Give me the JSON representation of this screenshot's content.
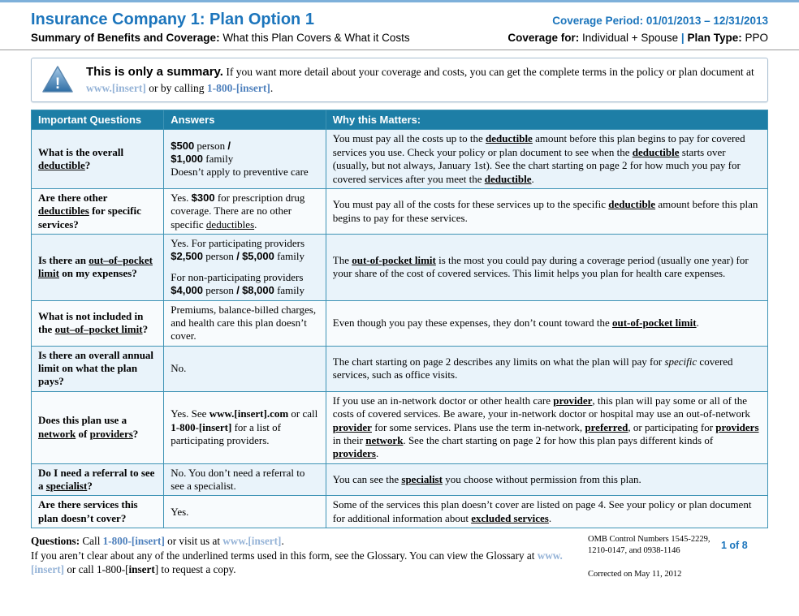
{
  "colors": {
    "title_blue": "#1C75BC",
    "table_header_teal": "#1D7EA6",
    "grid_line": "#3E93B5",
    "row_tint": "#E9F3FA",
    "phone_link": "#4F81BD",
    "web_link": "#95B3D7"
  },
  "header": {
    "title": "Insurance Company 1: Plan Option 1",
    "subtitle_bold": "Summary of Benefits and Coverage:",
    "subtitle_rest": " What this Plan Covers & What it Costs",
    "coverage_period_label": "Coverage Period:",
    "coverage_period_value": "01/01/2013 – 12/31/2013",
    "coverage_for": [
      {
        "t": "Coverage for:",
        "s": "b"
      },
      {
        "t": " Individual + Spouse ",
        "s": ""
      },
      {
        "t": "|",
        "s": "pipe"
      },
      {
        "t": " ",
        "s": ""
      },
      {
        "t": "Plan Type:",
        "s": "b"
      },
      {
        "t": " PPO",
        "s": ""
      }
    ]
  },
  "banner": {
    "icon": "warning-icon",
    "runs": [
      [
        {
          "t": "This is only a summary.",
          "s": "big"
        },
        {
          "t": " If you want more detail about your coverage and costs, you can get the complete terms in the policy or plan document at ",
          "s": ""
        },
        {
          "t": "www.[insert]",
          "s": "web"
        },
        {
          "t": " or by calling ",
          "s": ""
        },
        {
          "t": "1-800-[insert]",
          "s": "phone"
        },
        {
          "t": ".",
          "s": ""
        }
      ]
    ]
  },
  "table": {
    "headers": [
      "Important Questions",
      "Answers",
      "Why this Matters:"
    ],
    "rows": [
      {
        "question": [
          [
            {
              "t": "What is the overall ",
              "s": ""
            },
            {
              "t": "deductible",
              "s": "u"
            },
            {
              "t": "?",
              "s": ""
            }
          ]
        ],
        "answer": [
          [
            {
              "t": "$500",
              "s": "amt"
            },
            {
              "t": " person ",
              "s": ""
            },
            {
              "t": "/",
              "s": "amt"
            },
            {
              "t": "",
              "s": "br"
            },
            {
              "t": "$1,000",
              "s": "amt"
            },
            {
              "t": " family",
              "s": ""
            },
            {
              "t": "",
              "s": "br"
            },
            {
              "t": "Doesn’t apply to preventive care",
              "s": ""
            }
          ]
        ],
        "why": [
          [
            {
              "t": "You must pay all the costs up to the ",
              "s": ""
            },
            {
              "t": "deductible",
              "s": "b u"
            },
            {
              "t": " amount before this plan begins to pay for covered services you use. Check your policy or plan document to see when the ",
              "s": ""
            },
            {
              "t": "deductible",
              "s": "b u"
            },
            {
              "t": " starts over (usually, but not always, January 1st). See the chart starting on page 2 for how much you pay for covered services after you meet the ",
              "s": ""
            },
            {
              "t": "deductible",
              "s": "b u"
            },
            {
              "t": ".",
              "s": ""
            }
          ]
        ]
      },
      {
        "question": [
          [
            {
              "t": "Are there other ",
              "s": ""
            },
            {
              "t": "deductibles",
              "s": "u"
            },
            {
              "t": " for specific services?",
              "s": ""
            }
          ]
        ],
        "answer": [
          [
            {
              "t": "Yes. ",
              "s": ""
            },
            {
              "t": "$300",
              "s": "amt"
            },
            {
              "t": " for prescription drug coverage.  There are no other specific ",
              "s": ""
            },
            {
              "t": "deductibles",
              "s": "u"
            },
            {
              "t": ".",
              "s": ""
            }
          ]
        ],
        "why": [
          [
            {
              "t": "You must pay all of the costs for these services up to the specific ",
              "s": ""
            },
            {
              "t": "deductible",
              "s": "b u"
            },
            {
              "t": " amount before this plan begins to pay for these services.",
              "s": ""
            }
          ]
        ]
      },
      {
        "question": [
          [
            {
              "t": "Is there an ",
              "s": ""
            },
            {
              "t": "out–of–pocket limit",
              "s": "u"
            },
            {
              "t": " on my expenses?",
              "s": ""
            }
          ]
        ],
        "answer": [
          [
            {
              "t": "Yes. For participating providers ",
              "s": ""
            },
            {
              "t": "$2,500",
              "s": "amt"
            },
            {
              "t": " person ",
              "s": ""
            },
            {
              "t": "/",
              "s": "amt"
            },
            {
              "t": " ",
              "s": ""
            },
            {
              "t": "$5,000",
              "s": "amt"
            },
            {
              "t": " family",
              "s": ""
            }
          ],
          [
            {
              "t": "For non-participating providers ",
              "s": ""
            },
            {
              "t": "$4,000",
              "s": "amt"
            },
            {
              "t": " person ",
              "s": ""
            },
            {
              "t": "/",
              "s": "amt"
            },
            {
              "t": " ",
              "s": ""
            },
            {
              "t": "$8,000",
              "s": "amt"
            },
            {
              "t": " family",
              "s": ""
            }
          ]
        ],
        "why": [
          [
            {
              "t": "The ",
              "s": ""
            },
            {
              "t": "out-of-pocket limit",
              "s": "b u"
            },
            {
              "t": " is the most you could pay during a coverage period (usually one year) for your share of the cost of covered services. This limit helps you plan for health care expenses.",
              "s": ""
            }
          ]
        ]
      },
      {
        "question": [
          [
            {
              "t": "What is not included in the ",
              "s": ""
            },
            {
              "t": "out–of–pocket limit",
              "s": "u"
            },
            {
              "t": "?",
              "s": ""
            }
          ]
        ],
        "answer": [
          [
            {
              "t": "Premiums, balance-billed charges, and health care this plan doesn’t cover.",
              "s": ""
            }
          ]
        ],
        "why": [
          [
            {
              "t": "Even though you pay these expenses, they don’t count toward the ",
              "s": ""
            },
            {
              "t": "out-of-pocket limit",
              "s": "b u"
            },
            {
              "t": ".",
              "s": ""
            }
          ]
        ]
      },
      {
        "question": [
          [
            {
              "t": "Is there an overall annual limit on what the plan pays?",
              "s": ""
            }
          ]
        ],
        "answer": [
          [
            {
              "t": "No.",
              "s": ""
            }
          ]
        ],
        "why": [
          [
            {
              "t": "The chart starting on page 2 describes any limits on what the plan will pay for ",
              "s": ""
            },
            {
              "t": "specific",
              "s": "i"
            },
            {
              "t": " covered services, such as office visits.",
              "s": ""
            }
          ]
        ]
      },
      {
        "question": [
          [
            {
              "t": "Does this plan use a ",
              "s": ""
            },
            {
              "t": "network",
              "s": "u"
            },
            {
              "t": " of ",
              "s": ""
            },
            {
              "t": "providers",
              "s": "u"
            },
            {
              "t": "?",
              "s": ""
            }
          ]
        ],
        "answer": [
          [
            {
              "t": "Yes. See ",
              "s": ""
            },
            {
              "t": "www.[insert].com",
              "s": "b"
            },
            {
              "t": " or call ",
              "s": ""
            },
            {
              "t": "1-800-[insert]",
              "s": "b"
            },
            {
              "t": " for a list of participating providers.",
              "s": ""
            }
          ]
        ],
        "why": [
          [
            {
              "t": "If you use an in-network doctor or other health care ",
              "s": ""
            },
            {
              "t": "provider",
              "s": "b u"
            },
            {
              "t": ", this plan will pay some or all of the costs of covered services. Be aware, your in-network doctor or hospital may use an out-of-network ",
              "s": ""
            },
            {
              "t": "provider",
              "s": "b u"
            },
            {
              "t": " for some services.  Plans use the term in-network, ",
              "s": ""
            },
            {
              "t": "preferred",
              "s": "b u"
            },
            {
              "t": ", or participating for ",
              "s": ""
            },
            {
              "t": "providers",
              "s": "b u"
            },
            {
              "t": " in their ",
              "s": ""
            },
            {
              "t": "network",
              "s": "b u"
            },
            {
              "t": ".  See the chart starting on page 2 for how this plan pays different kinds of ",
              "s": ""
            },
            {
              "t": "providers",
              "s": "b u"
            },
            {
              "t": ".",
              "s": ""
            }
          ]
        ]
      },
      {
        "question": [
          [
            {
              "t": "Do I need a referral to see a ",
              "s": ""
            },
            {
              "t": "specialist",
              "s": "u"
            },
            {
              "t": "?",
              "s": ""
            }
          ]
        ],
        "answer": [
          [
            {
              "t": "No. You don’t need a referral to see a specialist.",
              "s": ""
            }
          ]
        ],
        "why": [
          [
            {
              "t": "You can see the ",
              "s": ""
            },
            {
              "t": "specialist",
              "s": "b u"
            },
            {
              "t": " you choose without permission from this plan.",
              "s": ""
            }
          ]
        ]
      },
      {
        "question": [
          [
            {
              "t": "Are there services this plan doesn’t cover?",
              "s": ""
            }
          ]
        ],
        "answer": [
          [
            {
              "t": "Yes.",
              "s": ""
            }
          ]
        ],
        "why": [
          [
            {
              "t": "Some of the services this plan doesn’t cover are listed on page 4. See your policy or plan document for additional information about ",
              "s": ""
            },
            {
              "t": "excluded services",
              "s": "b u"
            },
            {
              "t": ".",
              "s": ""
            }
          ]
        ]
      }
    ]
  },
  "footer": {
    "lines": [
      [
        {
          "t": "Questions:",
          "s": "b"
        },
        {
          "t": " Call ",
          "s": ""
        },
        {
          "t": "1-800-[insert]",
          "s": "phone"
        },
        {
          "t": " or visit us at ",
          "s": ""
        },
        {
          "t": "www.[insert]",
          "s": "web"
        },
        {
          "t": ".",
          "s": ""
        }
      ],
      [
        {
          "t": "If you aren’t clear about any of the underlined terms used in this form, see the Glossary.  You can view the Glossary at ",
          "s": ""
        },
        {
          "t": "www.[insert]",
          "s": "web"
        },
        {
          "t": " or call ",
          "s": ""
        },
        {
          "t": "1-800-[",
          "s": ""
        },
        {
          "t": "insert",
          "s": "b"
        },
        {
          "t": "] to request a copy.",
          "s": ""
        }
      ]
    ],
    "omb": "OMB Control Numbers 1545-2229, 1210-0147, and 0938-1146",
    "page_number": "1 of 8",
    "corrected": "Corrected on May 11, 2012"
  }
}
